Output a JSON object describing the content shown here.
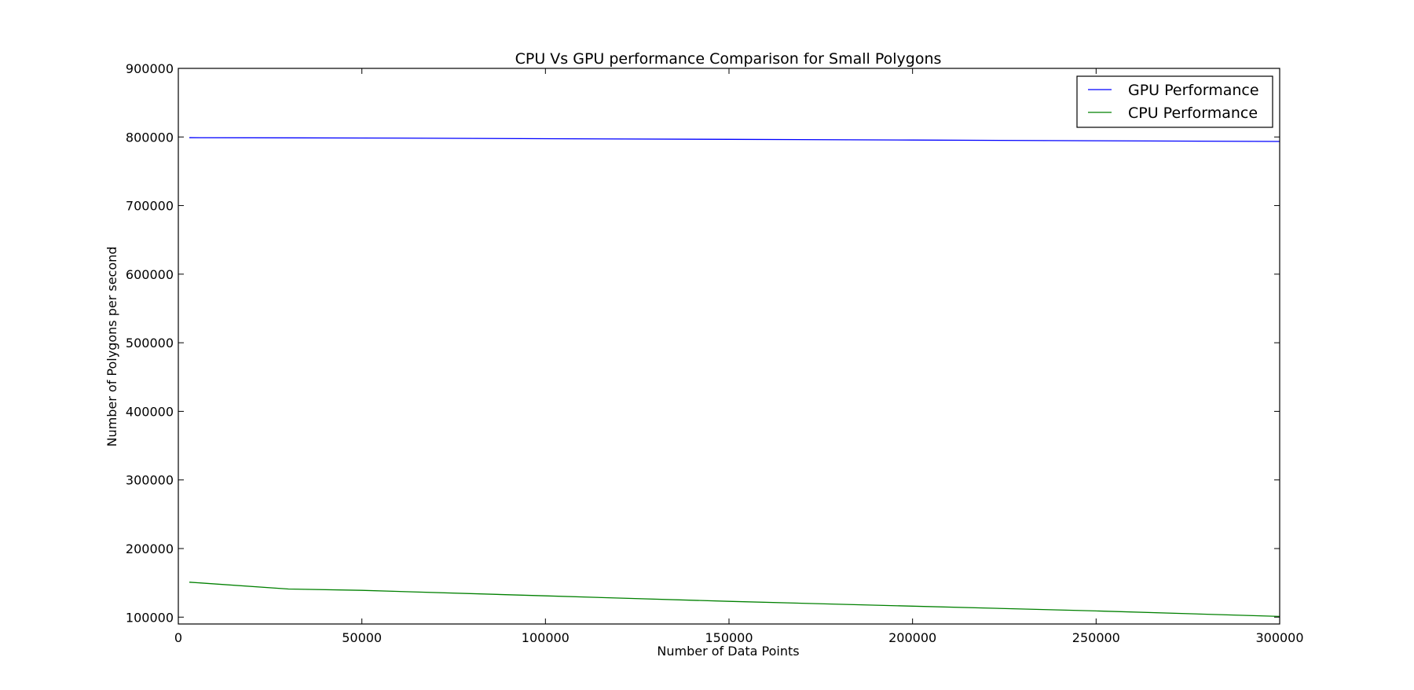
{
  "chart_data": {
    "type": "line",
    "title": "CPU Vs GPU performance Comparison for Small Polygons",
    "xlabel": "Number of Data Points",
    "ylabel": "Number of Polygons per second",
    "xlim": [
      0,
      300000
    ],
    "ylim": [
      90000,
      900000
    ],
    "xticks": [
      0,
      50000,
      100000,
      150000,
      200000,
      250000,
      300000
    ],
    "yticks": [
      100000,
      200000,
      300000,
      400000,
      500000,
      600000,
      700000,
      800000,
      900000
    ],
    "grid": false,
    "legend_position": "top-right",
    "series": [
      {
        "name": "GPU Performance",
        "color": "#0000ff",
        "x": [
          3000,
          50000,
          100000,
          150000,
          200000,
          250000,
          300000
        ],
        "y": [
          799000,
          798500,
          797500,
          796500,
          795500,
          794500,
          793500
        ]
      },
      {
        "name": "CPU Performance",
        "color": "#008000",
        "x": [
          3000,
          30000,
          50000,
          100000,
          150000,
          200000,
          250000,
          300000
        ],
        "y": [
          151000,
          141000,
          139000,
          131000,
          123000,
          116000,
          109000,
          101000
        ]
      }
    ]
  }
}
